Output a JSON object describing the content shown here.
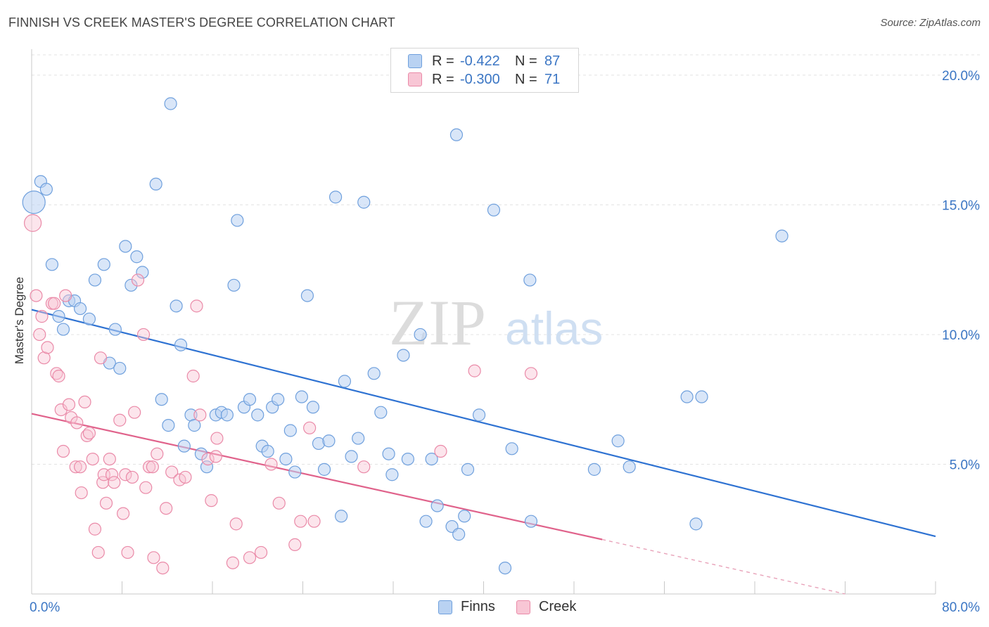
{
  "title": "FINNISH VS CREEK MASTER'S DEGREE CORRELATION CHART",
  "source": "Source: ZipAtlas.com",
  "watermark": {
    "zip": "ZIP",
    "atlas": "atlas"
  },
  "legend": {
    "rows": [
      {
        "r_label": "R =",
        "r_value": "-0.422",
        "n_label": "N =",
        "n_value": "87",
        "color": "#6fa0dd",
        "fill": "#b9d2f2"
      },
      {
        "r_label": "R =",
        "r_value": "-0.300",
        "n_label": "N =",
        "n_value": "71",
        "color": "#ea8aa8",
        "fill": "#f8c6d5"
      }
    ]
  },
  "bottom_legend": [
    {
      "label": "Finns",
      "color": "#6fa0dd",
      "fill": "#b9d2f2"
    },
    {
      "label": "Creek",
      "color": "#ea8aa8",
      "fill": "#f8c6d5"
    }
  ],
  "chart_data": {
    "type": "scatter",
    "xlabel": "",
    "ylabel": "Master's Degree",
    "xlim": [
      0,
      80
    ],
    "ylim": [
      0,
      21
    ],
    "x_tick_labels": [
      "0.0%",
      "80.0%"
    ],
    "y_ticks": [
      5,
      10,
      15,
      20
    ],
    "y_tick_labels": [
      "5.0%",
      "10.0%",
      "15.0%",
      "20.0%"
    ],
    "grid": "horizontal dashed",
    "series": [
      {
        "name": "Finns",
        "color": "#5b93d8",
        "trend": {
          "x0": 0,
          "y0": 10.96,
          "x1": 80,
          "y1": 2.22
        },
        "points": [
          [
            0.2,
            15.1
          ],
          [
            0.8,
            15.9
          ],
          [
            1.3,
            15.6
          ],
          [
            1.8,
            12.7
          ],
          [
            2.4,
            10.7
          ],
          [
            2.8,
            10.2
          ],
          [
            3.3,
            11.3
          ],
          [
            3.8,
            11.3
          ],
          [
            4.3,
            11.0
          ],
          [
            5.1,
            10.6
          ],
          [
            5.6,
            12.1
          ],
          [
            6.4,
            12.7
          ],
          [
            6.9,
            8.9
          ],
          [
            7.4,
            10.2
          ],
          [
            7.8,
            8.7
          ],
          [
            8.3,
            13.4
          ],
          [
            8.8,
            11.9
          ],
          [
            9.3,
            13.0
          ],
          [
            9.8,
            12.4
          ],
          [
            11.0,
            15.8
          ],
          [
            11.5,
            7.5
          ],
          [
            12.1,
            6.5
          ],
          [
            12.3,
            18.9
          ],
          [
            12.8,
            11.1
          ],
          [
            13.2,
            9.6
          ],
          [
            13.5,
            5.7
          ],
          [
            14.1,
            6.9
          ],
          [
            14.4,
            6.5
          ],
          [
            15.0,
            5.4
          ],
          [
            15.5,
            4.9
          ],
          [
            16.3,
            6.9
          ],
          [
            16.8,
            7.0
          ],
          [
            17.3,
            6.9
          ],
          [
            17.9,
            11.9
          ],
          [
            18.2,
            14.4
          ],
          [
            18.8,
            7.2
          ],
          [
            19.3,
            7.5
          ],
          [
            20.0,
            6.9
          ],
          [
            20.4,
            5.7
          ],
          [
            20.9,
            5.5
          ],
          [
            21.3,
            7.2
          ],
          [
            21.8,
            7.5
          ],
          [
            22.5,
            5.2
          ],
          [
            22.9,
            6.3
          ],
          [
            23.3,
            4.7
          ],
          [
            23.9,
            7.6
          ],
          [
            24.4,
            11.5
          ],
          [
            24.9,
            7.2
          ],
          [
            25.4,
            5.8
          ],
          [
            25.9,
            4.8
          ],
          [
            26.3,
            5.9
          ],
          [
            26.9,
            15.3
          ],
          [
            27.4,
            3.0
          ],
          [
            27.7,
            8.2
          ],
          [
            28.3,
            5.3
          ],
          [
            28.9,
            6.0
          ],
          [
            29.4,
            15.1
          ],
          [
            30.3,
            8.5
          ],
          [
            30.9,
            7.0
          ],
          [
            31.6,
            5.4
          ],
          [
            31.9,
            4.6
          ],
          [
            32.9,
            9.2
          ],
          [
            33.3,
            5.2
          ],
          [
            34.4,
            10.0
          ],
          [
            34.9,
            2.8
          ],
          [
            35.4,
            5.2
          ],
          [
            35.9,
            3.4
          ],
          [
            37.2,
            2.6
          ],
          [
            37.6,
            17.7
          ],
          [
            37.8,
            2.3
          ],
          [
            38.3,
            3.0
          ],
          [
            38.6,
            4.8
          ],
          [
            39.6,
            6.9
          ],
          [
            40.9,
            14.8
          ],
          [
            41.9,
            1.0
          ],
          [
            42.5,
            5.6
          ],
          [
            44.1,
            12.1
          ],
          [
            44.2,
            2.8
          ],
          [
            49.8,
            4.8
          ],
          [
            51.9,
            5.9
          ],
          [
            52.9,
            4.9
          ],
          [
            58.0,
            7.6
          ],
          [
            58.8,
            2.7
          ],
          [
            59.3,
            7.6
          ],
          [
            66.4,
            13.8
          ]
        ]
      },
      {
        "name": "Creek",
        "color": "#e87fa0",
        "trend": {
          "x0": 0,
          "y0": 6.95,
          "x1": 50.5,
          "y1": 2.1,
          "dash_to_x": 72,
          "dash_to_y": 0.0
        },
        "points": [
          [
            0.1,
            14.3
          ],
          [
            0.4,
            11.5
          ],
          [
            0.7,
            10.0
          ],
          [
            0.9,
            10.7
          ],
          [
            1.1,
            9.1
          ],
          [
            1.4,
            9.5
          ],
          [
            1.8,
            11.2
          ],
          [
            2.0,
            11.2
          ],
          [
            2.2,
            8.5
          ],
          [
            2.4,
            8.4
          ],
          [
            2.6,
            7.1
          ],
          [
            2.8,
            5.5
          ],
          [
            3.0,
            11.5
          ],
          [
            3.3,
            7.3
          ],
          [
            3.5,
            6.8
          ],
          [
            3.9,
            4.9
          ],
          [
            4.0,
            6.6
          ],
          [
            4.3,
            4.9
          ],
          [
            4.4,
            3.9
          ],
          [
            4.7,
            7.4
          ],
          [
            4.9,
            6.1
          ],
          [
            5.1,
            6.2
          ],
          [
            5.4,
            5.2
          ],
          [
            5.6,
            2.5
          ],
          [
            5.9,
            1.6
          ],
          [
            6.1,
            9.1
          ],
          [
            6.3,
            4.3
          ],
          [
            6.4,
            4.6
          ],
          [
            6.6,
            3.5
          ],
          [
            6.9,
            5.2
          ],
          [
            7.1,
            4.6
          ],
          [
            7.3,
            4.3
          ],
          [
            7.8,
            6.7
          ],
          [
            8.1,
            3.1
          ],
          [
            8.3,
            4.6
          ],
          [
            8.5,
            1.6
          ],
          [
            8.9,
            4.5
          ],
          [
            9.1,
            7.0
          ],
          [
            9.4,
            12.1
          ],
          [
            9.9,
            10.0
          ],
          [
            10.1,
            4.1
          ],
          [
            10.4,
            4.9
          ],
          [
            10.7,
            4.9
          ],
          [
            10.8,
            1.4
          ],
          [
            11.1,
            5.4
          ],
          [
            11.6,
            1.0
          ],
          [
            11.9,
            3.3
          ],
          [
            12.4,
            4.7
          ],
          [
            13.1,
            4.4
          ],
          [
            13.6,
            4.5
          ],
          [
            14.3,
            8.4
          ],
          [
            14.6,
            11.1
          ],
          [
            14.9,
            6.9
          ],
          [
            15.6,
            5.2
          ],
          [
            15.9,
            3.6
          ],
          [
            16.3,
            5.3
          ],
          [
            16.4,
            6.0
          ],
          [
            17.8,
            1.2
          ],
          [
            18.1,
            2.7
          ],
          [
            19.3,
            1.4
          ],
          [
            20.3,
            1.6
          ],
          [
            21.2,
            5.0
          ],
          [
            21.9,
            3.5
          ],
          [
            23.3,
            1.9
          ],
          [
            23.8,
            2.8
          ],
          [
            24.6,
            6.4
          ],
          [
            25.0,
            2.8
          ],
          [
            29.4,
            4.9
          ],
          [
            39.2,
            8.6
          ],
          [
            44.2,
            8.5
          ],
          [
            36.2,
            5.5
          ]
        ]
      }
    ]
  }
}
